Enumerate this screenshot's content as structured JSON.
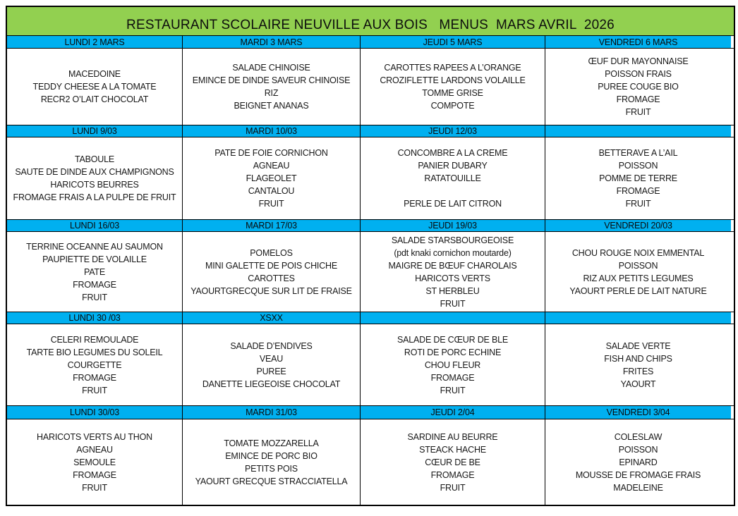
{
  "title": "RESTAURANT SCOLAIRE NEUVILLE AUX BOIS   MENUS  MARS AVRIL  2026",
  "colors": {
    "title_green": "#92d050",
    "day_header_blue": "#00b0f0",
    "border": "#000000"
  },
  "weeks": [
    {
      "days": [
        {
          "header": "LUNDI 2 MARS",
          "items": [
            "MACEDOINE",
            "TEDDY CHEESE A LA TOMATE",
            "RECR2 O’LAIT CHOCOLAT"
          ]
        },
        {
          "header": "MARDI 3 MARS",
          "items": [
            "SALADE CHINOISE",
            "EMINCE DE DINDE SAVEUR CHINOISE",
            "RIZ",
            "BEIGNET ANANAS"
          ]
        },
        {
          "header": "JEUDI 5 MARS",
          "items": [
            "CAROTTES RAPEES A L’ORANGE",
            "CROZIFLETTE LARDONS VOLAILLE",
            "TOMME GRISE",
            "COMPOTE"
          ]
        },
        {
          "header": "VENDREDI 6 MARS",
          "items": [
            "ŒUF DUR MAYONNAISE",
            "POISSON FRAIS",
            "PUREE COUGE BIO",
            "FROMAGE",
            "FRUIT"
          ]
        }
      ]
    },
    {
      "days": [
        {
          "header": "LUNDI 9/03",
          "items": [
            "TABOULE",
            "SAUTE DE DINDE AUX CHAMPIGNONS",
            "HARICOTS BEURRES",
            "FROMAGE FRAIS A LA PULPE DE FRUIT"
          ]
        },
        {
          "header": "MARDI 10/03",
          "items": [
            "PATE DE FOIE CORNICHON",
            "AGNEAU",
            "FLAGEOLET",
            "CANTALOU",
            "FRUIT"
          ]
        },
        {
          "header": "JEUDI 12/03",
          "items": [
            "CONCOMBRE A LA CREME",
            "PANIER DUBARY",
            "RATATOUILLE",
            "",
            "PERLE DE LAIT CITRON"
          ]
        },
        {
          "header": "",
          "items": [
            "BETTERAVE A L’AIL",
            "POISSON",
            "POMME DE TERRE",
            "FROMAGE",
            "FRUIT"
          ]
        }
      ]
    },
    {
      "days": [
        {
          "header": "LUNDI 16/03",
          "items": [
            "TERRINE OCEANNE AU SAUMON",
            "PAUPIETTE DE VOLAILLE",
            "PATE",
            "FROMAGE",
            "FRUIT"
          ]
        },
        {
          "header": "MARDI 17/03",
          "items": [
            "POMELOS",
            "MINI GALETTE DE POIS CHICHE",
            "CAROTTES",
            "YAOURTGRECQUE SUR LIT DE FRAISE"
          ]
        },
        {
          "header": "JEUDI 19/03",
          "items": [
            "SALADE STARSBOURGEOISE",
            "(pdt knaki cornichon moutarde)",
            "MAIGRE DE BŒUF CHAROLAIS",
            "HARICOTS VERTS",
            "ST HERBLEU",
            "FRUIT"
          ]
        },
        {
          "header": "VENDREDI 20/03",
          "items": [
            "CHOU ROUGE NOIX EMMENTAL",
            "POISSON",
            "RIZ AUX PETITS LEGUMES",
            "YAOURT PERLE DE LAIT NATURE"
          ]
        }
      ]
    },
    {
      "days": [
        {
          "header": "LUNDI 30 /03",
          "items": [
            "CELERI REMOULADE",
            "TARTE BIO LEGUMES DU SOLEIL",
            "COURGETTE",
            "FROMAGE",
            "FRUIT"
          ]
        },
        {
          "header": "XSXX",
          "items": [
            "SALADE D’ENDIVES",
            "VEAU",
            "PUREE",
            "DANETTE LIEGEOISE CHOCOLAT"
          ]
        },
        {
          "header": "",
          "items": [
            "SALADE DE CŒUR DE BLE",
            "ROTI DE PORC ECHINE",
            "CHOU FLEUR",
            "FROMAGE",
            "FRUIT"
          ]
        },
        {
          "header": "",
          "items": [
            "SALADE VERTE",
            "FISH AND CHIPS",
            "FRITES",
            "YAOURT"
          ]
        }
      ]
    },
    {
      "days": [
        {
          "header": "LUNDI 30/03",
          "items": [
            "HARICOTS VERTS AU THON",
            "AGNEAU",
            "SEMOULE",
            "FROMAGE",
            "FRUIT"
          ]
        },
        {
          "header": "MARDI 31/03",
          "items": [
            "TOMATE MOZZARELLA",
            "EMINCE DE PORC BIO",
            "PETITS POIS",
            "YAOURT GRECQUE STRACCIATELLA"
          ]
        },
        {
          "header": "JEUDI 2/04",
          "items": [
            "SARDINE AU BEURRE",
            "STEACK HACHE",
            "CŒUR DE BE",
            "FROMAGE",
            "FRUIT"
          ]
        },
        {
          "header": "VENDREDI 3/04",
          "items": [
            "COLESLAW",
            "POISSON",
            "EPINARD",
            "MOUSSE DE FROMAGE FRAIS",
            "MADELEINE"
          ]
        }
      ]
    }
  ]
}
